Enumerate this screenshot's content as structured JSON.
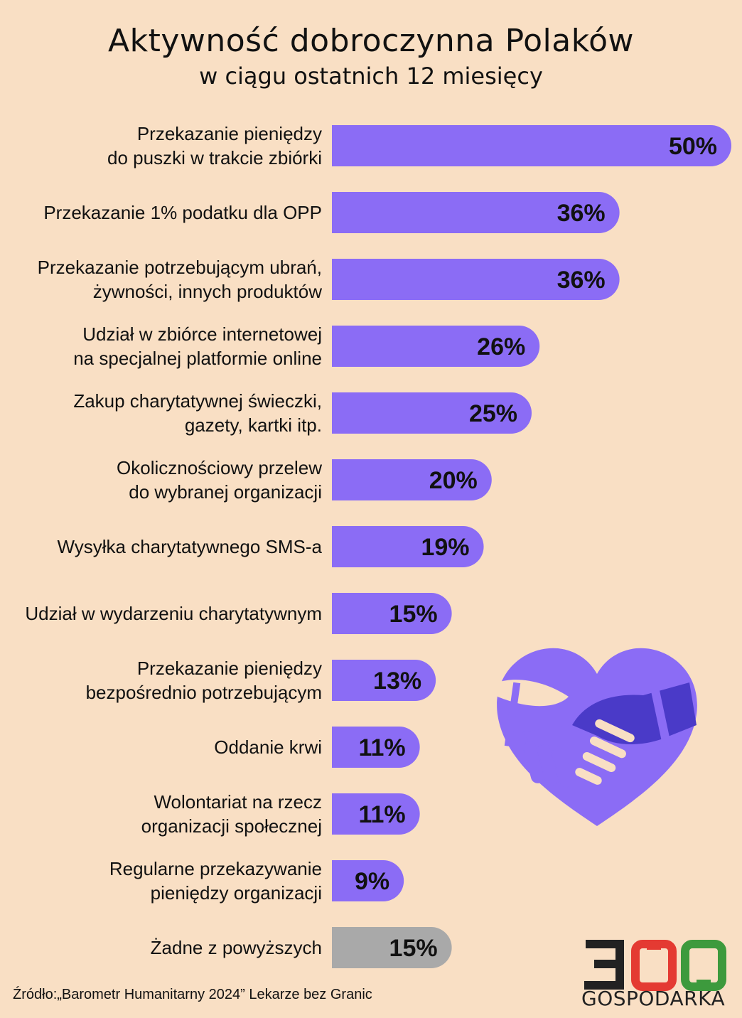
{
  "title": "Aktywność dobroczynna Polaków",
  "subtitle": "w ciągu ostatnich 12 miesięcy",
  "source": "Źródło:„Barometr Humanitarny 2024” Lekarze bez Granic",
  "logo": {
    "number": "300",
    "text": "GOSPODARKA"
  },
  "colors": {
    "background": "#f9dfc4",
    "bar": "#8b6cf5",
    "bar_none": "#a9a9a9",
    "heart": "#8b6cf5",
    "heart_dark": "#4a3ac8"
  },
  "chart_data": {
    "type": "bar",
    "orientation": "horizontal",
    "categories": [
      [
        "Przekazanie pieniędzy",
        "do puszki w trakcie zbiórki"
      ],
      [
        "Przekazanie 1% podatku dla OPP"
      ],
      [
        "Przekazanie potrzebującym ubrań,",
        "żywności, innych produktów"
      ],
      [
        "Udział w zbiórce internetowej",
        "na specjalnej platformie online"
      ],
      [
        "Zakup charytatywnej świeczki,",
        "gazety, kartki itp."
      ],
      [
        "Okolicznościowy przelew",
        "do wybranej organizacji"
      ],
      [
        "Wysyłka charytatywnego SMS-a"
      ],
      [
        "Udział w wydarzeniu charytatywnym"
      ],
      [
        "Przekazanie pieniędzy",
        "bezpośrednio potrzebującym"
      ],
      [
        "Oddanie krwi"
      ],
      [
        "Wolontariat na rzecz",
        "organizacji społecznej"
      ],
      [
        "Regularne przekazywanie",
        "pieniędzy organizacji"
      ],
      [
        "Żadne z powyższych"
      ]
    ],
    "values": [
      50,
      36,
      36,
      26,
      25,
      20,
      19,
      15,
      13,
      11,
      11,
      9,
      15
    ],
    "value_labels": [
      "50%",
      "36%",
      "36%",
      "26%",
      "25%",
      "20%",
      "19%",
      "15%",
      "13%",
      "11%",
      "11%",
      "9%",
      "15%"
    ],
    "highlight_gray_index": 12,
    "xlim": [
      0,
      50
    ],
    "grid": false,
    "legend": "none"
  }
}
